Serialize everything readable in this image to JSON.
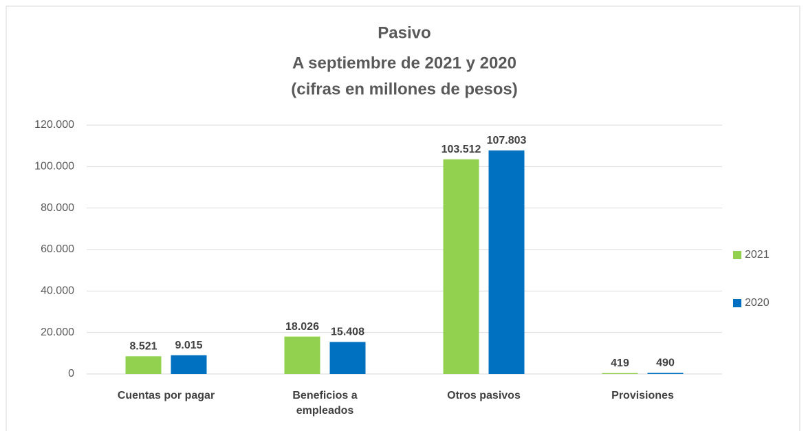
{
  "chart_data": {
    "type": "bar",
    "title": "Pasivo",
    "subtitle": [
      "A septiembre de 2021 y 2020",
      "(cifras en millones de pesos)"
    ],
    "categories": [
      "Cuentas por pagar",
      "Beneficios a empleados",
      "Otros pasivos",
      "Provisiones"
    ],
    "series": [
      {
        "name": "2021",
        "color": "#92d050",
        "values": [
          8521,
          18026,
          103512,
          419
        ],
        "value_labels": [
          "8.521",
          "18.026",
          "103.512",
          "419"
        ]
      },
      {
        "name": "2020",
        "color": "#0070c0",
        "values": [
          9015,
          15408,
          107803,
          490
        ],
        "value_labels": [
          "9.015",
          "15.408",
          "107.803",
          "490"
        ]
      }
    ],
    "ylim": [
      0,
      120000
    ],
    "yticks": [
      0,
      {
        "value": 20000,
        "label": "20.000"
      },
      {
        "value": 40000,
        "label": "40.000"
      },
      {
        "value": 60000,
        "label": "60.000"
      },
      {
        "value": 80000,
        "label": "80.000"
      },
      {
        "value": 100000,
        "label": "100.000"
      },
      {
        "value": 120000,
        "label": "120.000"
      }
    ],
    "grid": true,
    "legend": "right"
  }
}
